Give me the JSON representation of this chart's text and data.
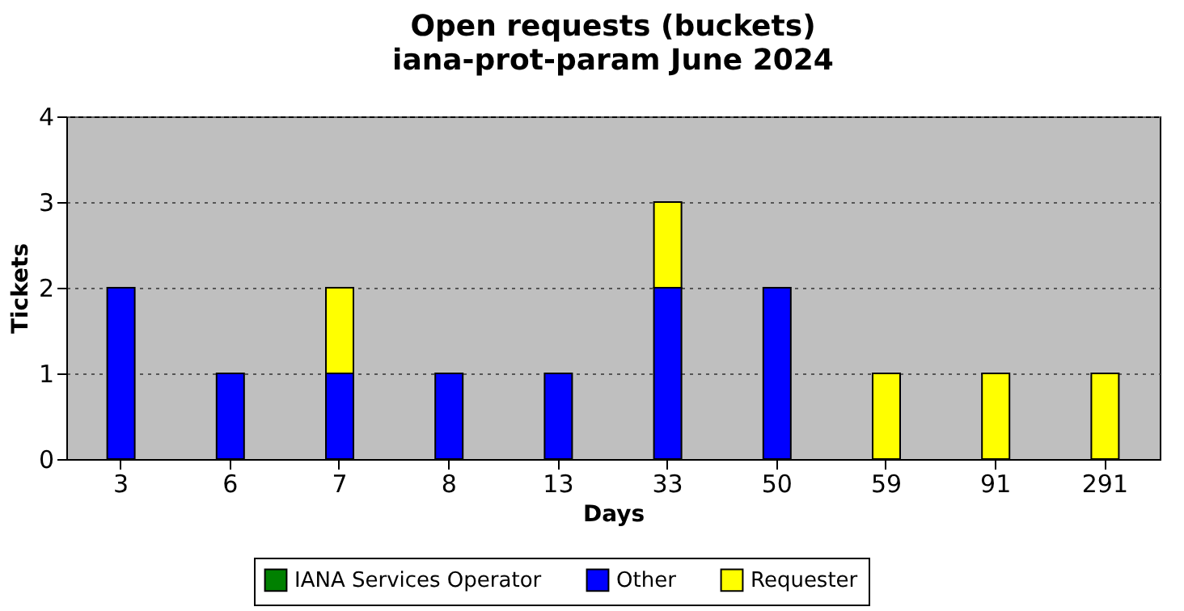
{
  "chart_data": {
    "type": "bar",
    "title": "Open requests (buckets)",
    "subtitle": "iana-prot-param June 2024",
    "xlabel": "Days",
    "ylabel": "Tickets",
    "stacked": true,
    "categories": [
      "3",
      "6",
      "7",
      "8",
      "13",
      "33",
      "50",
      "59",
      "91",
      "291"
    ],
    "series": [
      {
        "name": "IANA Services Operator",
        "color": "#008000",
        "values": [
          0,
          0,
          0,
          0,
          0,
          0,
          0,
          0,
          0,
          0
        ]
      },
      {
        "name": "Other",
        "color": "#0000ff",
        "values": [
          2,
          1,
          1,
          1,
          1,
          2,
          2,
          0,
          0,
          0
        ]
      },
      {
        "name": "Requester",
        "color": "#ffff00",
        "values": [
          0,
          0,
          1,
          0,
          0,
          1,
          0,
          1,
          1,
          1
        ]
      }
    ],
    "ylim": [
      0,
      4
    ],
    "yticks": [
      0,
      1,
      2,
      3,
      4
    ],
    "grid": "y",
    "legend": "bottom"
  }
}
